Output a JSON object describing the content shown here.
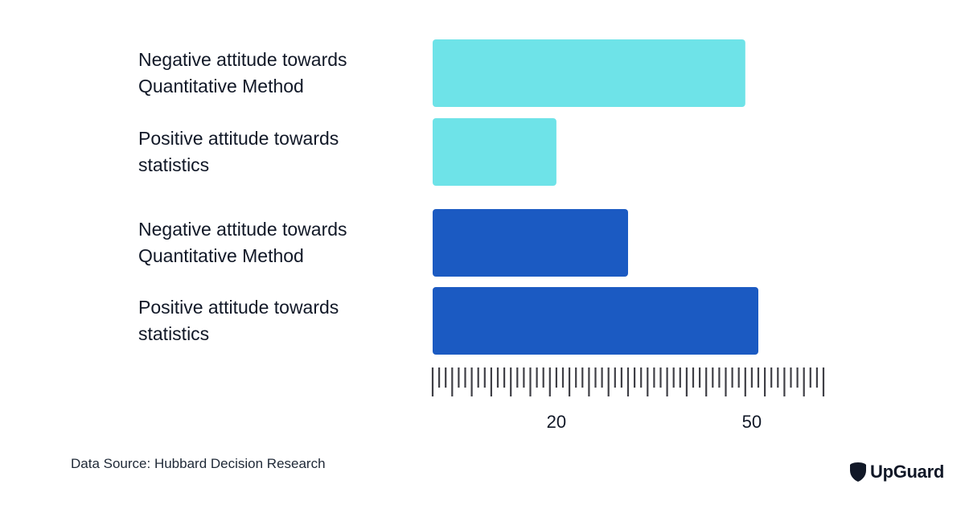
{
  "chart_data": {
    "type": "bar",
    "orientation": "horizontal",
    "categories": [
      [
        "Negative attitude towards",
        "Quantitative Method"
      ],
      [
        "Positive attitude towards",
        "statistics"
      ],
      [
        "Negative attitude towards",
        "Quantitative Method"
      ],
      [
        "Positive attitude towards",
        "statistics"
      ]
    ],
    "values": [
      48,
      19,
      30,
      50
    ],
    "bar_colors": [
      "#6ee3e8",
      "#6ee3e8",
      "#1b5ac2",
      "#1b5ac2"
    ],
    "xlim": [
      0,
      60
    ],
    "x_tick_labels": [
      {
        "value": 19,
        "label": "20"
      },
      {
        "value": 49,
        "label": "50"
      }
    ],
    "ruler_minor_step": 1,
    "ruler_major_step": 3,
    "grid": false,
    "legend": "none"
  },
  "footer": {
    "source": "Data Source: Hubbard Decision Research",
    "brand": "UpGuard",
    "brand_icon": "shield-icon"
  },
  "colors": {
    "light_bar": "#6ee3e8",
    "dark_bar": "#1b5ac2",
    "ruler": "#3f3f46",
    "text": "#111827"
  }
}
